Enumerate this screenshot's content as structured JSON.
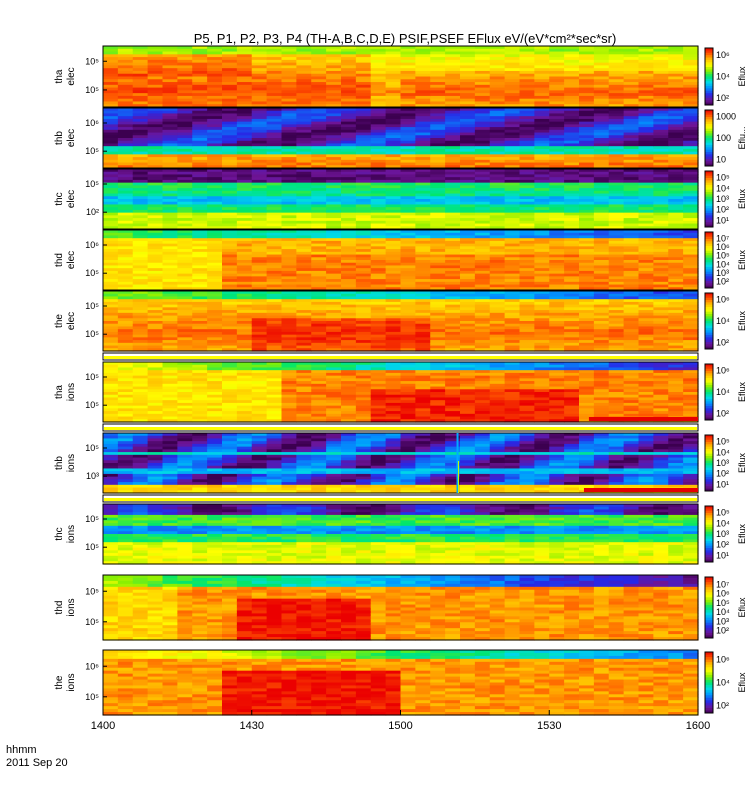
{
  "chart_data": {
    "type": "heatmap",
    "title": "P5, P1, P2, P3, P4 (TH-A,B,C,D,E) PSIF,PSEF EFlux eV/(eV*cm²*sec*sr)",
    "xlabel_top": "hhmm",
    "xlabel_bottom": "2011 Sep 20",
    "x_ticks": [
      "1400",
      "1430",
      "1500",
      "1530",
      "1600"
    ],
    "xlim": [
      "14:00",
      "16:00"
    ],
    "colorbar_label": "Eflux",
    "panels": [
      {
        "name": "tha elec",
        "line1": "tha",
        "line2": "elec",
        "scale": "log",
        "ytick_labels": [
          "10⁵",
          "10⁵"
        ],
        "cbar_labels": [
          "10⁶",
          "10⁴",
          "10²"
        ],
        "cbar_label": "Eflux",
        "has_separator_strip": false
      },
      {
        "name": "thb elec",
        "line1": "thb",
        "line2": "elec",
        "scale": "log",
        "ytick_labels": [
          "10⁶",
          "10⁵"
        ],
        "cbar_labels": [
          "1000",
          "100",
          "10"
        ],
        "cbar_label": "Eflu...",
        "has_separator_strip": false
      },
      {
        "name": "thc elec",
        "line1": "thc",
        "line2": "elec",
        "scale": "log",
        "ytick_labels": [
          "10⁵",
          "10²"
        ],
        "cbar_labels": [
          "10⁵",
          "10⁴",
          "10³",
          "10²",
          "10¹"
        ],
        "cbar_label": "Eflux",
        "has_separator_strip": false
      },
      {
        "name": "thd elec",
        "line1": "thd",
        "line2": "elec",
        "scale": "log",
        "ytick_labels": [
          "10⁶",
          "10⁵"
        ],
        "cbar_labels": [
          "10⁷",
          "10⁶",
          "10⁵",
          "10⁴",
          "10³",
          "10²"
        ],
        "cbar_label": "Eflux",
        "has_separator_strip": false
      },
      {
        "name": "the elec",
        "line1": "the",
        "line2": "elec",
        "scale": "log",
        "ytick_labels": [
          "10⁵",
          "10⁵"
        ],
        "cbar_labels": [
          "10⁶",
          "10⁴",
          "10²"
        ],
        "cbar_label": "Eflux",
        "has_separator_strip": false
      },
      {
        "name": "tha ions",
        "line1": "tha",
        "line2": "ions",
        "scale": "log",
        "ytick_labels": [
          "10⁵",
          "10⁵"
        ],
        "cbar_labels": [
          "10⁶",
          "10⁴",
          "10²"
        ],
        "cbar_label": "Eflux",
        "has_separator_strip": true,
        "red_from": "15:38"
      },
      {
        "name": "thb ions",
        "line1": "thb",
        "line2": "ions",
        "scale": "log",
        "ytick_labels": [
          "10⁵",
          "10³"
        ],
        "cbar_labels": [
          "10⁵",
          "10⁴",
          "10³",
          "10²",
          "10¹"
        ],
        "cbar_label": "Eflux",
        "has_separator_strip": true,
        "red_from": "15:37"
      },
      {
        "name": "thc ions",
        "line1": "thc",
        "line2": "ions",
        "scale": "log",
        "ytick_labels": [
          "10⁵",
          "10⁵"
        ],
        "cbar_labels": [
          "10⁵",
          "10⁴",
          "10³",
          "10²",
          "10¹"
        ],
        "cbar_label": "Eflux",
        "has_separator_strip": true
      },
      {
        "name": "thd ions",
        "line1": "thd",
        "line2": "ions",
        "scale": "log",
        "ytick_labels": [
          "10⁵",
          "10⁵"
        ],
        "cbar_labels": [
          "10⁷",
          "10⁶",
          "10⁵",
          "10⁴",
          "10³",
          "10²"
        ],
        "cbar_label": "Eflux",
        "has_separator_strip": false
      },
      {
        "name": "the ions",
        "line1": "the",
        "line2": "ions",
        "scale": "log",
        "ytick_labels": [
          "10⁶",
          "10⁵"
        ],
        "cbar_labels": [
          "10⁶",
          "10⁴",
          "10²"
        ],
        "cbar_label": "Eflux",
        "has_separator_strip": false
      }
    ],
    "grid": false,
    "legend": "colorbar-right"
  }
}
